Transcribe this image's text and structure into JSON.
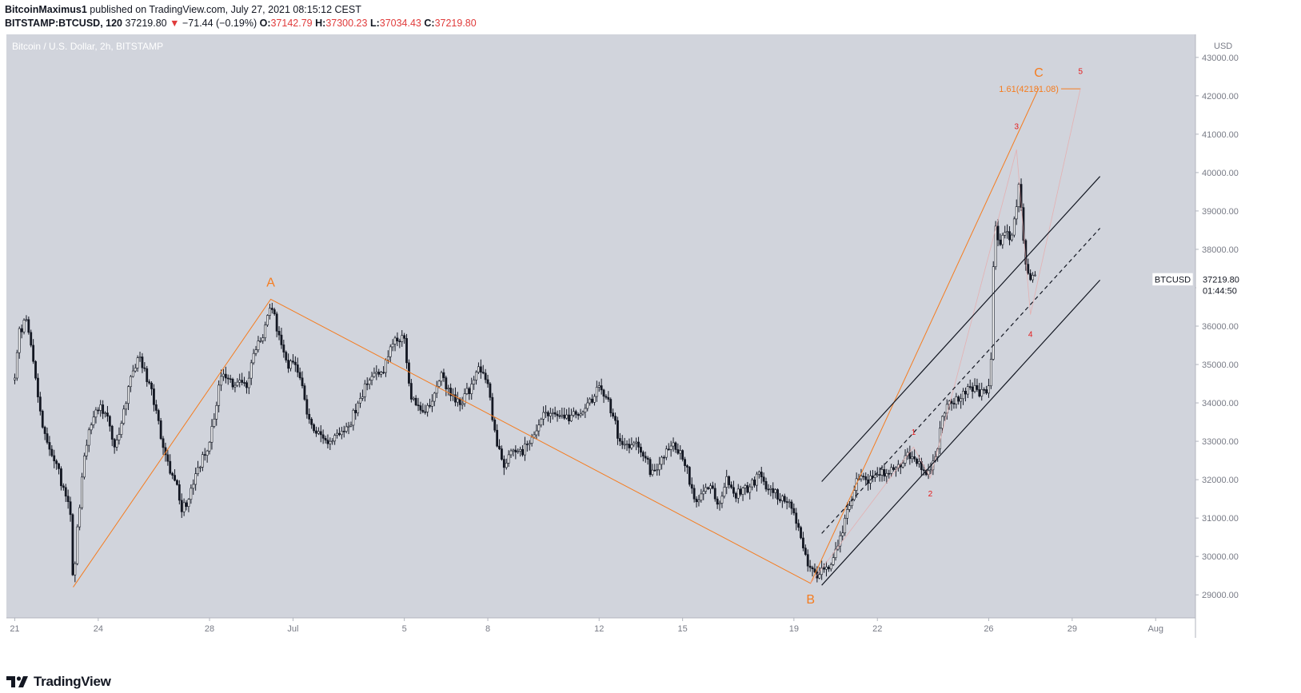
{
  "header": {
    "author": "BitcoinMaximus1",
    "published_text": "published on TradingView.com, July 27, 2021 08:15:12 CEST",
    "symbol": "BITSTAMP:BTCUSD, 120",
    "last": "37219.80",
    "change": "−71.44 (−0.19%)",
    "o_label": "O:",
    "o_value": "37142.79",
    "h_label": "H:",
    "h_value": "37300.23",
    "l_label": "L:",
    "l_value": "37034.43",
    "c_label": "C:",
    "c_value": "37219.80"
  },
  "footer": {
    "brand": "TradingView"
  },
  "colors": {
    "plot_bg": "#d1d4dc",
    "candle": "#131722",
    "orange": "#f57c1f",
    "red_label": "#e51b1b",
    "faint_line": "#e8a8a8"
  },
  "chart_data": {
    "type": "candlestick",
    "title": "Bitcoin / U.S. Dollar, 2h, BITSTAMP",
    "currency_label": "USD",
    "ylim": [
      28400,
      43600
    ],
    "y_ticks": [
      29000,
      30000,
      31000,
      32000,
      33000,
      34000,
      35000,
      36000,
      37000,
      38000,
      39000,
      40000,
      41000,
      42000,
      43000
    ],
    "y_tick_labels": [
      "29000.00",
      "30000.00",
      "31000.00",
      "32000.00",
      "33000.00",
      "34000.00",
      "35000.00",
      "36000.00",
      "37000.00",
      "38000.00",
      "39000.00",
      "40000.00",
      "41000.00",
      "42000.00",
      "43000.00"
    ],
    "x_ticks": [
      {
        "label": "21",
        "day": 0
      },
      {
        "label": "24",
        "day": 3
      },
      {
        "label": "28",
        "day": 7
      },
      {
        "label": "Jul",
        "day": 10
      },
      {
        "label": "5",
        "day": 14
      },
      {
        "label": "8",
        "day": 17
      },
      {
        "label": "12",
        "day": 21
      },
      {
        "label": "15",
        "day": 24
      },
      {
        "label": "19",
        "day": 28
      },
      {
        "label": "22",
        "day": 31
      },
      {
        "label": "26",
        "day": 35
      },
      {
        "label": "29",
        "day": 38
      },
      {
        "label": "Aug",
        "day": 41
      }
    ],
    "price_anchors": [
      [
        0,
        34600
      ],
      [
        0.15,
        35800
      ],
      [
        0.4,
        36200
      ],
      [
        0.6,
        35500
      ],
      [
        0.8,
        34200
      ],
      [
        1.0,
        33300
      ],
      [
        1.2,
        32800
      ],
      [
        1.5,
        32400
      ],
      [
        1.8,
        31600
      ],
      [
        2.0,
        31200
      ],
      [
        2.1,
        29200
      ],
      [
        2.25,
        30800
      ],
      [
        2.5,
        32600
      ],
      [
        2.7,
        33400
      ],
      [
        3.0,
        33900
      ],
      [
        3.3,
        33700
      ],
      [
        3.6,
        32700
      ],
      [
        3.9,
        33700
      ],
      [
        4.2,
        34900
      ],
      [
        4.5,
        35100
      ],
      [
        4.9,
        34300
      ],
      [
        5.2,
        33300
      ],
      [
        5.5,
        32400
      ],
      [
        5.8,
        31900
      ],
      [
        6.0,
        31200
      ],
      [
        6.3,
        31600
      ],
      [
        6.6,
        32300
      ],
      [
        6.9,
        32800
      ],
      [
        7.1,
        33300
      ],
      [
        7.4,
        34800
      ],
      [
        7.7,
        34500
      ],
      [
        8.0,
        34600
      ],
      [
        8.3,
        34400
      ],
      [
        8.6,
        35300
      ],
      [
        8.9,
        35700
      ],
      [
        9.1,
        36400
      ],
      [
        9.3,
        36400
      ],
      [
        9.5,
        35700
      ],
      [
        9.8,
        34900
      ],
      [
        10.0,
        35100
      ],
      [
        10.3,
        34700
      ],
      [
        10.5,
        33600
      ],
      [
        10.8,
        33200
      ],
      [
        11.2,
        33000
      ],
      [
        11.6,
        33200
      ],
      [
        12.0,
        33400
      ],
      [
        12.4,
        34100
      ],
      [
        12.8,
        34700
      ],
      [
        13.2,
        34800
      ],
      [
        13.5,
        35500
      ],
      [
        13.8,
        35700
      ],
      [
        14.0,
        35600
      ],
      [
        14.2,
        34300
      ],
      [
        14.4,
        34000
      ],
      [
        14.7,
        33700
      ],
      [
        15.0,
        34000
      ],
      [
        15.3,
        34800
      ],
      [
        15.6,
        34300
      ],
      [
        16.0,
        34000
      ],
      [
        16.3,
        34300
      ],
      [
        16.6,
        34900
      ],
      [
        17.0,
        34500
      ],
      [
        17.3,
        33000
      ],
      [
        17.6,
        32300
      ],
      [
        17.9,
        32800
      ],
      [
        18.2,
        32700
      ],
      [
        18.5,
        33000
      ],
      [
        18.8,
        33400
      ],
      [
        19.0,
        33800
      ],
      [
        19.4,
        33700
      ],
      [
        19.8,
        33600
      ],
      [
        20.2,
        33700
      ],
      [
        20.6,
        33900
      ],
      [
        20.9,
        34300
      ],
      [
        21.1,
        34400
      ],
      [
        21.4,
        33900
      ],
      [
        21.7,
        33100
      ],
      [
        22.0,
        32900
      ],
      [
        22.3,
        33000
      ],
      [
        22.6,
        32700
      ],
      [
        22.9,
        32100
      ],
      [
        23.2,
        32500
      ],
      [
        23.5,
        32900
      ],
      [
        23.8,
        32800
      ],
      [
        24.1,
        32400
      ],
      [
        24.4,
        31500
      ],
      [
        24.7,
        31600
      ],
      [
        25.0,
        31900
      ],
      [
        25.3,
        31300
      ],
      [
        25.6,
        32000
      ],
      [
        25.9,
        31600
      ],
      [
        26.2,
        31700
      ],
      [
        26.5,
        31900
      ],
      [
        26.8,
        32200
      ],
      [
        27.1,
        31700
      ],
      [
        27.4,
        31600
      ],
      [
        27.7,
        31500
      ],
      [
        28.0,
        31100
      ],
      [
        28.2,
        30600
      ],
      [
        28.5,
        29800
      ],
      [
        28.8,
        29500
      ],
      [
        29.2,
        29700
      ],
      [
        29.6,
        30300
      ],
      [
        30.0,
        31400
      ],
      [
        30.3,
        32100
      ],
      [
        30.6,
        31900
      ],
      [
        31.0,
        32100
      ],
      [
        31.4,
        32200
      ],
      [
        31.8,
        32400
      ],
      [
        32.2,
        32700
      ],
      [
        32.5,
        32400
      ],
      [
        32.8,
        32200
      ],
      [
        33.1,
        32500
      ],
      [
        33.3,
        33600
      ],
      [
        33.6,
        34000
      ],
      [
        34.0,
        34200
      ],
      [
        34.4,
        34400
      ],
      [
        34.8,
        34200
      ],
      [
        35.0,
        34500
      ],
      [
        35.1,
        35300
      ],
      [
        35.2,
        38600
      ],
      [
        35.4,
        38200
      ],
      [
        35.6,
        38500
      ],
      [
        35.8,
        38100
      ],
      [
        36.0,
        39100
      ],
      [
        36.1,
        39800
      ],
      [
        36.2,
        38600
      ],
      [
        36.3,
        37700
      ],
      [
        36.45,
        37300
      ],
      [
        36.6,
        37200
      ],
      [
        36.7,
        37220
      ]
    ],
    "wave_points": [
      {
        "label": "A",
        "day": 9.2,
        "price": 36700
      },
      {
        "label": "B",
        "day": 28.6,
        "price": 29300
      },
      {
        "label": "C",
        "day": 36.8,
        "price": 42200
      }
    ],
    "fib_label": "1.61(42181.08)",
    "fib_price": 42181.08,
    "fib_line_days": [
      37.6,
      38.3
    ],
    "wave_count": [
      {
        "label": "1",
        "day": 32.3,
        "price": 33250
      },
      {
        "label": "2",
        "day": 32.9,
        "price": 31650
      },
      {
        "label": "3",
        "day": 36.0,
        "price": 41220
      },
      {
        "label": "4",
        "day": 36.5,
        "price": 35800
      },
      {
        "label": "5",
        "day": 38.3,
        "price": 42650
      }
    ],
    "channel": {
      "upper": [
        [
          29.0,
          31950
        ],
        [
          39.0,
          39900
        ]
      ],
      "middle": [
        [
          29.0,
          30600
        ],
        [
          39.0,
          38550
        ]
      ],
      "lower": [
        [
          29.0,
          29250
        ],
        [
          39.0,
          37200
        ]
      ]
    },
    "last_price": {
      "symbol": "BTCUSD",
      "price": 37219.8,
      "label": "37219.80",
      "countdown": "01:44:50"
    }
  }
}
